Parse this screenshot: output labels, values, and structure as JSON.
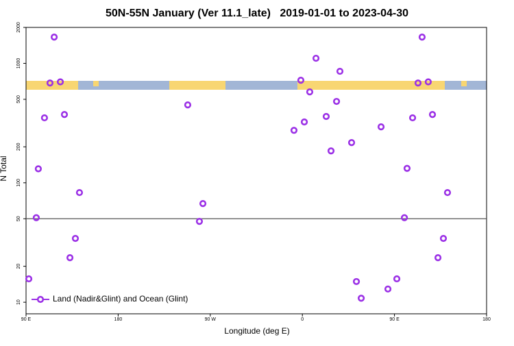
{
  "chart_data": {
    "type": "scatter",
    "title": "50N-55N January (Ver 11.1_late)   2019-01-01 to 2023-04-30",
    "x_label": "Longitude (deg E)",
    "y_label": "N Total",
    "log_y": true,
    "hline": 50,
    "legend_position": "bottom-left",
    "xlim": [
      90,
      540
    ],
    "xticks": [
      {
        "value": 90,
        "label": "90 E"
      },
      180,
      {
        "value": 270,
        "label": "90 W"
      },
      {
        "value": 360,
        "label": "0"
      },
      {
        "value": 450,
        "label": "90 E"
      },
      {
        "value": 540,
        "label": "180"
      }
    ],
    "ylim": [
      8,
      2000
    ],
    "yticks": [
      10,
      20,
      50,
      100,
      200,
      500,
      1000,
      2000
    ],
    "series": [
      {
        "name": "Land (Nadir&Glint) and Ocean (Glint)",
        "color": "#9b30e6",
        "x": [
          92.7,
          100,
          102,
          108,
          113.4,
          117.5,
          123.5,
          127.5,
          132.9,
          138.2,
          142.2,
          248,
          259.4,
          262.8,
          351.8,
          358.5,
          361.9,
          367.2,
          373.3,
          383.3,
          388,
          393.4,
          396.7,
          408.1,
          412.8,
          417.5,
          436.9,
          443.6,
          452.3,
          459.7,
          462.3,
          467.7,
          473,
          477,
          483,
          487.1,
          492.5,
          497.8,
          501.8
        ],
        "values": [
          15.7,
          51,
          131,
          350,
          685,
          1660,
          700,
          373,
          23.6,
          34.2,
          82.8,
          449,
          47.5,
          67,
          275,
          722,
          323,
          577,
          1103,
          359,
          185,
          480,
          858,
          217,
          14.9,
          10.8,
          294,
          12.9,
          15.7,
          51,
          132,
          350,
          685,
          1660,
          700,
          373,
          23.6,
          34.2,
          82.8
        ]
      }
    ]
  }
}
